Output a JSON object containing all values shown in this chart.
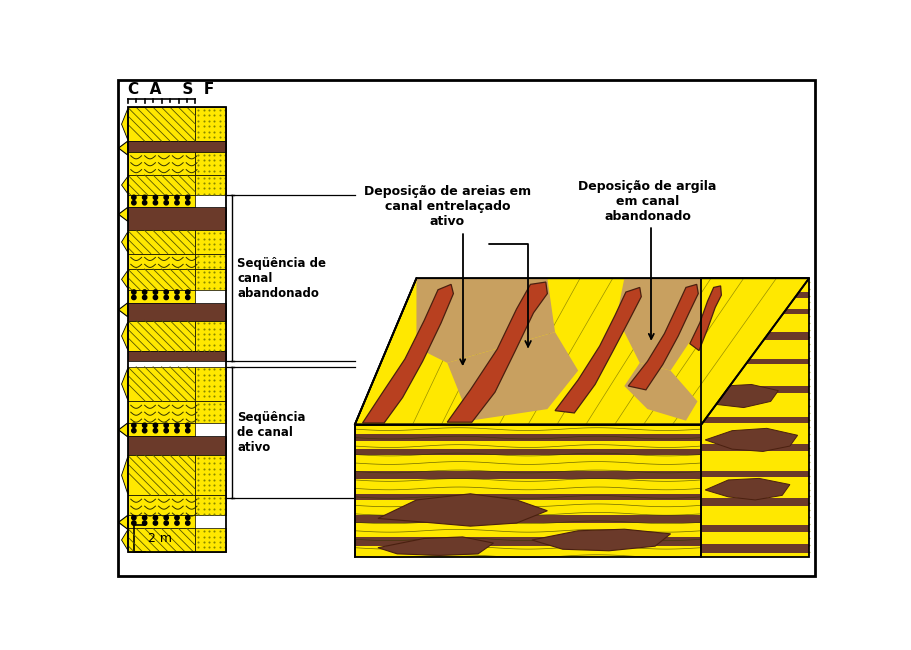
{
  "bg_color": "#ffffff",
  "yellow": "#FFE800",
  "brown": "#6B3A2A",
  "dark_brown": "#4A2010",
  "tan": "#C8A060",
  "red_brown": "#B84020",
  "label1": "Seqüência de\ncanal\nabandonado",
  "label2": "Seqüência\nde canal\nativo",
  "label3": "2 m",
  "ann1": "Deposição de areias em\ncanal entrelaçado\nativo",
  "ann2": "Deposição de argila\nem canal\nabandonado",
  "header": "C  A    S  F"
}
